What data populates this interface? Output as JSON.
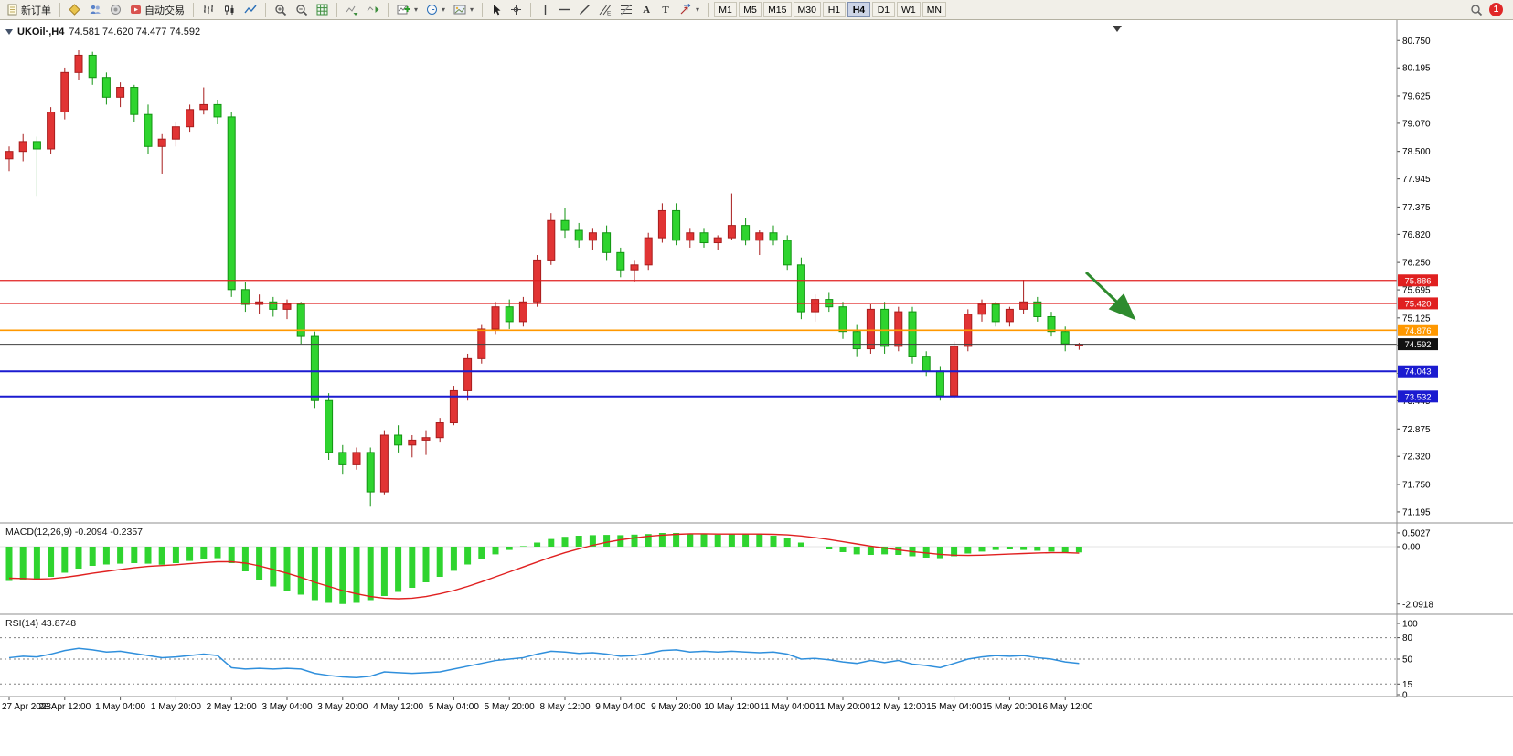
{
  "toolbar": {
    "new_order": "新订单",
    "auto_trading": "自动交易",
    "text_tool": "A",
    "label_tool": "T",
    "channel_marker": "E",
    "caret": "▾",
    "timeframes": [
      "M1",
      "M5",
      "M15",
      "M30",
      "H1",
      "H4",
      "D1",
      "W1",
      "MN"
    ],
    "active_timeframe": "H4",
    "badge_count": "1"
  },
  "chart_header": {
    "symbol": "UKOil·,H4",
    "ohlc": "74.581 74.620 74.477 74.592"
  },
  "indicators": {
    "macd_label": "MACD(12,26,9) -0.2094 -0.2357",
    "rsi_label": "RSI(14) 43.8748"
  },
  "chart_data": {
    "type": "candlestick",
    "symbol": "UKOil",
    "timeframe": "H4",
    "ylim": [
      70.99,
      80.94
    ],
    "colors": {
      "up": "#e13434",
      "up_border": "#a81d1d",
      "down": "#2fd42f",
      "down_border": "#129412",
      "macd_hist": "#2fd42f",
      "macd_signal": "#e02020",
      "rsi": "#2f8fdc",
      "arrow": "#2e8b2e"
    },
    "price_axis_labels": [
      "80.750",
      "80.195",
      "79.625",
      "79.070",
      "78.500",
      "77.945",
      "77.375",
      "76.820",
      "76.250",
      "75.695",
      "75.125",
      "74.570",
      "74.000",
      "73.445",
      "72.875",
      "72.320",
      "71.750",
      "71.195"
    ],
    "hlines": [
      {
        "price": 75.886,
        "label": "75.886",
        "color": "#e02020",
        "tag_bg": "#e02020",
        "lw": 1.3
      },
      {
        "price": 75.42,
        "label": "75.420",
        "color": "#e02020",
        "tag_bg": "#e02020",
        "lw": 1.3
      },
      {
        "price": 74.876,
        "label": "74.876",
        "color": "#ff9800",
        "tag_bg": "#ff9800",
        "lw": 1.6
      },
      {
        "price": 74.592,
        "label": "74.592",
        "color": "#404040",
        "tag_bg": "#111111",
        "lw": 1
      },
      {
        "price": 74.043,
        "label": "74.043",
        "color": "#1b1bd0",
        "tag_bg": "#1b1bd0",
        "lw": 2
      },
      {
        "price": 73.532,
        "label": "73.532",
        "color": "#1b1bd0",
        "tag_bg": "#1b1bd0",
        "lw": 2
      }
    ],
    "arrow": {
      "t1": 77.5,
      "p1": 76.05,
      "t2": 81.2,
      "p2": 75.08
    },
    "time_labels": [
      "27 Apr 2023",
      "28 Apr 12:00",
      "1 May 04:00",
      "1 May 20:00",
      "2 May 12:00",
      "3 May 04:00",
      "3 May 20:00",
      "4 May 12:00",
      "5 May 04:00",
      "5 May 20:00",
      "8 May 12:00",
      "9 May 04:00",
      "9 May 20:00",
      "10 May 12:00",
      "11 May 04:00",
      "11 May 20:00",
      "12 May 12:00",
      "15 May 04:00",
      "15 May 20:00",
      "16 May 12:00"
    ],
    "label_every": 4,
    "candles": [
      [
        78.35,
        78.6,
        78.1,
        78.5
      ],
      [
        78.5,
        78.85,
        78.3,
        78.7
      ],
      [
        78.7,
        78.8,
        77.6,
        78.55
      ],
      [
        78.55,
        79.4,
        78.45,
        79.3
      ],
      [
        79.3,
        80.2,
        79.15,
        80.1
      ],
      [
        80.1,
        80.55,
        79.95,
        80.45
      ],
      [
        80.45,
        80.52,
        79.85,
        80.0
      ],
      [
        80.0,
        80.1,
        79.45,
        79.6
      ],
      [
        79.6,
        79.9,
        79.4,
        79.8
      ],
      [
        79.8,
        79.85,
        79.1,
        79.25
      ],
      [
        79.25,
        79.45,
        78.45,
        78.6
      ],
      [
        78.6,
        78.85,
        78.05,
        78.75
      ],
      [
        78.75,
        79.1,
        78.6,
        79.0
      ],
      [
        79.0,
        79.45,
        78.9,
        79.35
      ],
      [
        79.35,
        79.8,
        79.25,
        79.45
      ],
      [
        79.45,
        79.55,
        79.05,
        79.2
      ],
      [
        79.2,
        79.3,
        75.55,
        75.7
      ],
      [
        75.7,
        75.85,
        75.25,
        75.4
      ],
      [
        75.4,
        75.6,
        75.2,
        75.45
      ],
      [
        75.45,
        75.55,
        75.15,
        75.3
      ],
      [
        75.3,
        75.5,
        75.1,
        75.4
      ],
      [
        75.4,
        75.45,
        74.6,
        74.75
      ],
      [
        74.75,
        74.85,
        73.3,
        73.45
      ],
      [
        73.45,
        73.6,
        72.25,
        72.4
      ],
      [
        72.4,
        72.55,
        71.95,
        72.15
      ],
      [
        72.15,
        72.5,
        72.05,
        72.4
      ],
      [
        72.4,
        72.5,
        71.3,
        71.6
      ],
      [
        71.6,
        72.85,
        71.55,
        72.75
      ],
      [
        72.75,
        72.95,
        72.4,
        72.55
      ],
      [
        72.55,
        72.75,
        72.3,
        72.65
      ],
      [
        72.65,
        72.85,
        72.35,
        72.7
      ],
      [
        72.7,
        73.1,
        72.6,
        73.0
      ],
      [
        73.0,
        73.75,
        72.95,
        73.65
      ],
      [
        73.65,
        74.4,
        73.45,
        74.3
      ],
      [
        74.3,
        75.0,
        74.2,
        74.9
      ],
      [
        74.9,
        75.45,
        74.8,
        75.35
      ],
      [
        75.35,
        75.5,
        74.9,
        75.05
      ],
      [
        75.05,
        75.55,
        74.95,
        75.45
      ],
      [
        75.45,
        76.4,
        75.35,
        76.3
      ],
      [
        76.3,
        77.25,
        76.2,
        77.1
      ],
      [
        77.1,
        77.35,
        76.75,
        76.9
      ],
      [
        76.9,
        77.05,
        76.55,
        76.7
      ],
      [
        76.7,
        76.95,
        76.5,
        76.85
      ],
      [
        76.85,
        77.0,
        76.3,
        76.45
      ],
      [
        76.45,
        76.55,
        75.95,
        76.1
      ],
      [
        76.1,
        76.3,
        75.85,
        76.2
      ],
      [
        76.2,
        76.85,
        76.1,
        76.75
      ],
      [
        76.75,
        77.45,
        76.65,
        77.3
      ],
      [
        77.3,
        77.45,
        76.6,
        76.7
      ],
      [
        76.7,
        76.95,
        76.55,
        76.85
      ],
      [
        76.85,
        76.95,
        76.55,
        76.65
      ],
      [
        76.65,
        76.8,
        76.5,
        76.75
      ],
      [
        76.75,
        77.65,
        76.7,
        77.0
      ],
      [
        77.0,
        77.15,
        76.6,
        76.7
      ],
      [
        76.7,
        76.9,
        76.4,
        76.85
      ],
      [
        76.85,
        77.0,
        76.6,
        76.7
      ],
      [
        76.7,
        76.8,
        76.1,
        76.2
      ],
      [
        76.2,
        76.35,
        75.1,
        75.25
      ],
      [
        75.25,
        75.6,
        75.05,
        75.5
      ],
      [
        75.5,
        75.65,
        75.25,
        75.35
      ],
      [
        75.35,
        75.45,
        74.7,
        74.85
      ],
      [
        74.85,
        75.0,
        74.35,
        74.5
      ],
      [
        74.5,
        75.4,
        74.4,
        75.3
      ],
      [
        75.3,
        75.45,
        74.4,
        74.55
      ],
      [
        74.55,
        75.35,
        74.45,
        75.25
      ],
      [
        75.25,
        75.35,
        74.2,
        74.35
      ],
      [
        74.35,
        74.45,
        73.95,
        74.05
      ],
      [
        74.05,
        74.15,
        73.45,
        73.55
      ],
      [
        73.55,
        74.65,
        73.5,
        74.55
      ],
      [
        74.55,
        75.3,
        74.45,
        75.2
      ],
      [
        75.2,
        75.5,
        75.05,
        75.4
      ],
      [
        75.4,
        75.45,
        74.95,
        75.05
      ],
      [
        75.05,
        75.35,
        74.95,
        75.3
      ],
      [
        75.3,
        75.9,
        75.2,
        75.45
      ],
      [
        75.45,
        75.55,
        75.05,
        75.15
      ],
      [
        75.15,
        75.25,
        74.75,
        74.85
      ],
      [
        74.85,
        74.95,
        74.45,
        74.6
      ],
      [
        74.58,
        74.62,
        74.48,
        74.59
      ]
    ],
    "macd": {
      "params": "12,26,9",
      "main_last": -0.2094,
      "signal_last": -0.2357,
      "axis_labels": [
        "0.5027",
        "0.00",
        "-2.0918"
      ],
      "hist": [
        -1.25,
        -1.2,
        -1.22,
        -1.1,
        -0.95,
        -0.8,
        -0.7,
        -0.65,
        -0.62,
        -0.6,
        -0.62,
        -0.66,
        -0.6,
        -0.52,
        -0.45,
        -0.42,
        -0.6,
        -0.9,
        -1.2,
        -1.45,
        -1.6,
        -1.75,
        -1.95,
        -2.05,
        -2.09,
        -2.05,
        -1.95,
        -1.8,
        -1.65,
        -1.5,
        -1.3,
        -1.1,
        -0.88,
        -0.65,
        -0.45,
        -0.28,
        -0.12,
        0.02,
        0.15,
        0.28,
        0.36,
        0.4,
        0.42,
        0.43,
        0.42,
        0.44,
        0.46,
        0.5,
        0.5,
        0.48,
        0.45,
        0.44,
        0.45,
        0.47,
        0.45,
        0.4,
        0.3,
        0.15,
        0.0,
        -0.1,
        -0.2,
        -0.28,
        -0.3,
        -0.28,
        -0.3,
        -0.35,
        -0.4,
        -0.42,
        -0.35,
        -0.25,
        -0.18,
        -0.12,
        -0.1,
        -0.12,
        -0.15,
        -0.18,
        -0.2,
        -0.2094
      ],
      "signal": [
        -1.15,
        -1.16,
        -1.18,
        -1.17,
        -1.12,
        -1.05,
        -0.97,
        -0.9,
        -0.83,
        -0.77,
        -0.72,
        -0.69,
        -0.66,
        -0.62,
        -0.58,
        -0.55,
        -0.55,
        -0.6,
        -0.7,
        -0.83,
        -0.97,
        -1.12,
        -1.3,
        -1.45,
        -1.6,
        -1.72,
        -1.82,
        -1.88,
        -1.9,
        -1.88,
        -1.82,
        -1.72,
        -1.6,
        -1.45,
        -1.28,
        -1.1,
        -0.92,
        -0.74,
        -0.56,
        -0.38,
        -0.22,
        -0.08,
        0.05,
        0.16,
        0.25,
        0.32,
        0.38,
        0.42,
        0.45,
        0.47,
        0.47,
        0.46,
        0.46,
        0.46,
        0.46,
        0.45,
        0.43,
        0.39,
        0.33,
        0.26,
        0.18,
        0.1,
        0.02,
        -0.05,
        -0.12,
        -0.18,
        -0.23,
        -0.28,
        -0.31,
        -0.32,
        -0.31,
        -0.29,
        -0.27,
        -0.25,
        -0.23,
        -0.22,
        -0.22,
        -0.2357
      ]
    },
    "rsi": {
      "period": 14,
      "last": 43.8748,
      "levels": [
        80,
        50,
        15
      ],
      "axis_labels": [
        "100",
        "80",
        "50",
        "15",
        "0"
      ],
      "values": [
        52,
        54,
        53,
        57,
        62,
        65,
        63,
        60,
        61,
        58,
        55,
        52,
        53,
        55,
        57,
        55,
        38,
        36,
        37,
        36,
        37,
        36,
        30,
        27,
        25,
        24,
        26,
        32,
        31,
        30,
        31,
        32,
        36,
        40,
        44,
        48,
        50,
        52,
        57,
        61,
        60,
        58,
        59,
        57,
        54,
        55,
        58,
        62,
        63,
        60,
        61,
        60,
        61,
        60,
        59,
        60,
        57,
        50,
        51,
        49,
        46,
        44,
        48,
        45,
        48,
        43,
        41,
        38,
        44,
        50,
        53,
        55,
        54,
        55,
        52,
        50,
        46,
        43.87
      ]
    }
  }
}
